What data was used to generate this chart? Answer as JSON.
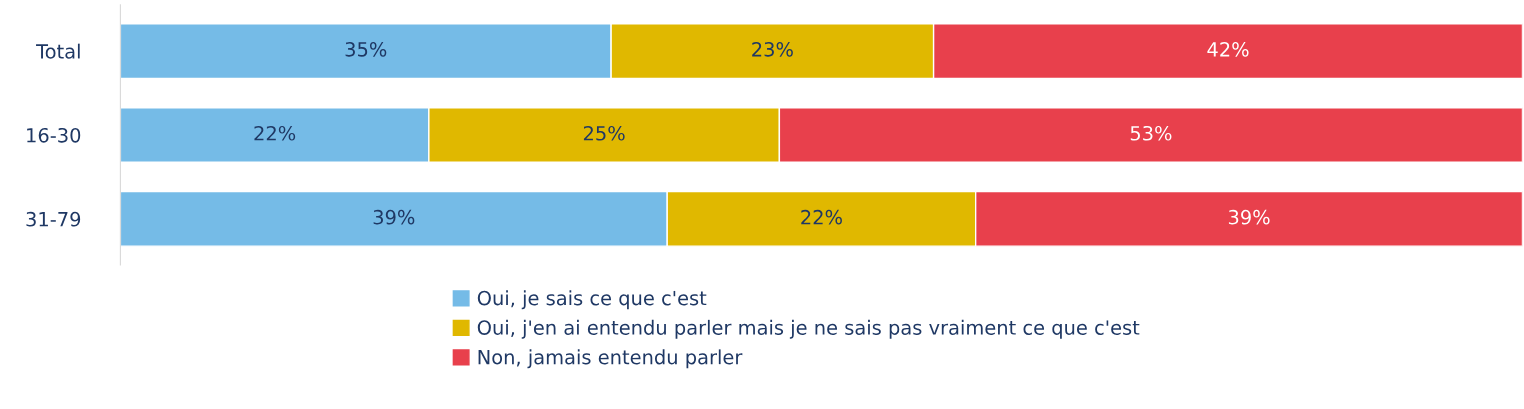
{
  "chart_data": {
    "type": "bar",
    "orientation": "horizontal",
    "stacked": true,
    "legend": "bottom",
    "grid": false,
    "tick_labels": "y",
    "categories": [
      "Total",
      "16-30",
      "31-79"
    ],
    "series": [
      {
        "name": "Oui, je sais ce que c'est",
        "color": "#75bbe7",
        "values": [
          35,
          22,
          39
        ],
        "value_labels": [
          "35%",
          "22%",
          "39%"
        ]
      },
      {
        "name": "Oui, j'en ai entendu parler mais je ne sais pas vraiment ce que c'est",
        "color": "#e0b800",
        "values": [
          23,
          25,
          22
        ],
        "value_labels": [
          "23%",
          "25%",
          "22%"
        ]
      },
      {
        "name": "Non, jamais entendu parler",
        "color": "#e8404c",
        "values": [
          42,
          53,
          39
        ],
        "value_labels": [
          "42%",
          "53%",
          "39%"
        ]
      }
    ]
  }
}
